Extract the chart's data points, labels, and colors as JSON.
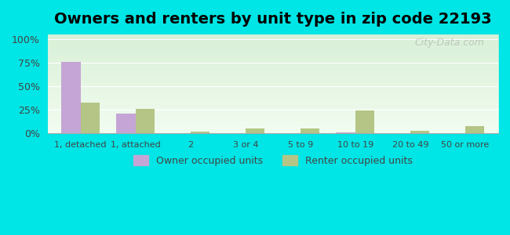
{
  "title": "Owners and renters by unit type in zip code 22193",
  "categories": [
    "1, detached",
    "1, attached",
    "2",
    "3 or 4",
    "5 to 9",
    "10 to 19",
    "20 to 49",
    "50 or more"
  ],
  "owner_values": [
    76,
    21,
    0,
    0,
    0,
    1,
    0,
    0
  ],
  "renter_values": [
    33,
    26,
    2,
    5,
    5,
    24,
    3,
    8
  ],
  "owner_color": "#c5a5d5",
  "renter_color": "#b5c585",
  "background_color": "#00e5e5",
  "plot_bg_top": "#f0fff0",
  "plot_bg_bottom": "#e8f5e8",
  "title_fontsize": 14,
  "yticks": [
    0,
    25,
    50,
    75,
    100
  ],
  "ylim": [
    0,
    105
  ],
  "legend_owner": "Owner occupied units",
  "legend_renter": "Renter occupied units",
  "watermark": "City-Data.com"
}
